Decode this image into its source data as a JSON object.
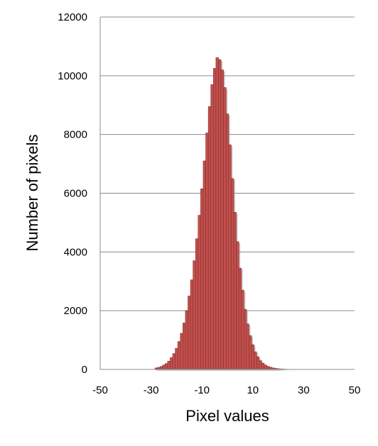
{
  "colors": {
    "bar_fill": "#c0504d",
    "bar_edge": "#8b2c2a",
    "bar_shadow": "#9a9a9a",
    "grid": "#8c8c8c",
    "axis": "#8c8c8c"
  },
  "chart_data": {
    "type": "bar",
    "xlabel": "Pixel values",
    "ylabel": "Number of pixels",
    "xlim": [
      -50,
      50
    ],
    "ylim": [
      0,
      12000
    ],
    "x_ticks": [
      -50,
      -30,
      -10,
      10,
      30,
      50
    ],
    "y_ticks": [
      0,
      2000,
      4000,
      6000,
      8000,
      10000,
      12000
    ],
    "grid": "horizontal",
    "legend": "none",
    "x": [
      -28,
      -27,
      -26,
      -25,
      -24,
      -23,
      -22,
      -21,
      -20,
      -19,
      -18,
      -17,
      -16,
      -15,
      -14,
      -13,
      -12,
      -11,
      -10,
      -9,
      -8,
      -7,
      -6,
      -5,
      -4,
      -3,
      -2,
      -1,
      0,
      1,
      2,
      3,
      4,
      5,
      6,
      7,
      8,
      9,
      10,
      11,
      12,
      13,
      14,
      15,
      16,
      17,
      18,
      19,
      20,
      21,
      22,
      23,
      24,
      25,
      26,
      27
    ],
    "values": [
      50,
      70,
      100,
      150,
      200,
      280,
      400,
      540,
      720,
      950,
      1230,
      1580,
      2000,
      2500,
      3050,
      3700,
      4450,
      5250,
      6150,
      7100,
      8050,
      8950,
      9700,
      10250,
      10620,
      10550,
      10200,
      9600,
      8700,
      7650,
      6500,
      5350,
      4350,
      3450,
      2700,
      2050,
      1550,
      1150,
      840,
      600,
      430,
      300,
      210,
      150,
      105,
      75,
      52,
      36,
      25,
      17,
      12,
      8,
      5,
      3,
      2,
      1
    ]
  }
}
